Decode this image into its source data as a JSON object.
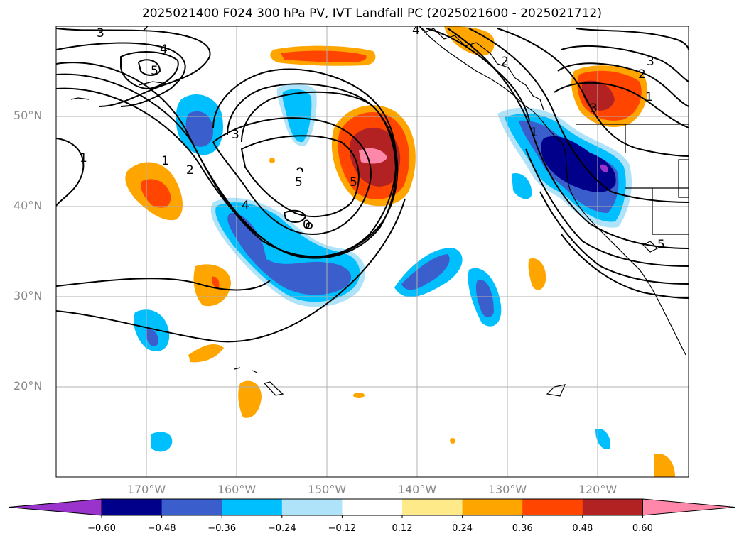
{
  "title": "2025021400 F024 300 hPa PV, IVT Landfall PC (2025021600 - 2025021712)",
  "axes": {
    "lat_ticks": [
      "50°N",
      "40°N",
      "30°N",
      "20°N"
    ],
    "lon_ticks": [
      "170°W",
      "160°W",
      "150°W",
      "140°W",
      "130°W",
      "120°W"
    ]
  },
  "colorbar": {
    "levels": [
      "−0.60",
      "−0.48",
      "−0.36",
      "−0.24",
      "−0.12",
      "0.12",
      "0.24",
      "0.36",
      "0.48",
      "0.60"
    ],
    "colors": [
      "#9933cc",
      "#00008b",
      "#3a5fcd",
      "#00bfff",
      "#aee3fa",
      "#ffffff",
      "#ffea8a",
      "#ffa500",
      "#ff4500",
      "#b22222",
      "#ff88aa"
    ]
  },
  "contour_labels": [
    "3",
    "2",
    "4",
    "5",
    "1",
    "1",
    "2",
    "3",
    "4",
    "5",
    "5",
    "0",
    "3",
    "2",
    "1",
    "1",
    "2",
    "3",
    "4",
    "5"
  ]
}
